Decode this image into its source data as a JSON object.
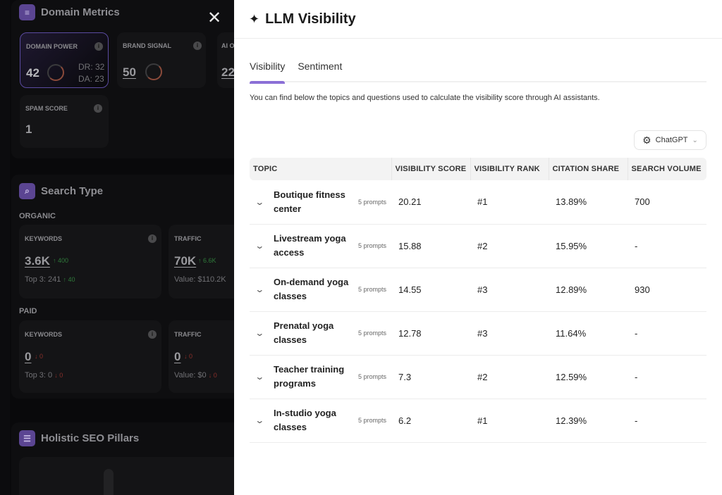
{
  "left": {
    "domain_metrics": {
      "title": "Domain Metrics",
      "cards": [
        {
          "label": "DOMAIN POWER",
          "value": "42",
          "dr": "DR: 32",
          "da": "DA: 23"
        },
        {
          "label": "BRAND SIGNAL",
          "value": "50"
        },
        {
          "label": "AI O",
          "value": "22"
        },
        {
          "label": "SPAM SCORE",
          "value": "1"
        }
      ]
    },
    "search_type": {
      "title": "Search Type",
      "organic": {
        "label": "ORGANIC",
        "keywords": {
          "label": "KEYWORDS",
          "value": "3.6K",
          "delta": "400",
          "sub": "Top 3: 241",
          "sub_delta": "40"
        },
        "traffic": {
          "label": "TRAFFIC",
          "value": "70K",
          "delta": "6.6K",
          "sub": "Value: $110.2K"
        }
      },
      "paid": {
        "label": "PAID",
        "keywords": {
          "label": "KEYWORDS",
          "value": "0",
          "delta": "0",
          "sub": "Top 3: 0",
          "sub_delta": "0"
        },
        "traffic": {
          "label": "TRAFFIC",
          "value": "0",
          "delta": "0",
          "sub": "Value: $0",
          "sub_delta": "0"
        }
      }
    },
    "holistic": {
      "title": "Holistic SEO Pillars"
    }
  },
  "panel": {
    "title": "LLM Visibility",
    "tabs": [
      {
        "label": "Visibility",
        "active": true
      },
      {
        "label": "Sentiment",
        "active": false
      }
    ],
    "description": "You can find below the topics and questions used to calculate the visibility score through AI assistants.",
    "model_select": "ChatGPT",
    "accent": "#8b6fd6",
    "columns": [
      "TOPIC",
      "VISIBILITY SCORE",
      "VISIBILITY RANK",
      "CITATION SHARE",
      "SEARCH VOLUME"
    ],
    "rows": [
      {
        "topic": "Boutique fitness center",
        "prompts": "5 prompts",
        "score": "20.21",
        "rank": "#1",
        "share": "13.89%",
        "volume": "700"
      },
      {
        "topic": "Livestream yoga access",
        "prompts": "5 prompts",
        "score": "15.88",
        "rank": "#2",
        "share": "15.95%",
        "volume": "-"
      },
      {
        "topic": "On-demand yoga classes",
        "prompts": "5 prompts",
        "score": "14.55",
        "rank": "#3",
        "share": "12.89%",
        "volume": "930"
      },
      {
        "topic": "Prenatal yoga classes",
        "prompts": "5 prompts",
        "score": "12.78",
        "rank": "#3",
        "share": "11.64%",
        "volume": "-"
      },
      {
        "topic": "Teacher training programs",
        "prompts": "5 prompts",
        "score": "7.3",
        "rank": "#2",
        "share": "12.59%",
        "volume": "-"
      },
      {
        "topic": "In-studio yoga classes",
        "prompts": "5 prompts",
        "score": "6.2",
        "rank": "#1",
        "share": "12.39%",
        "volume": "-"
      }
    ]
  }
}
